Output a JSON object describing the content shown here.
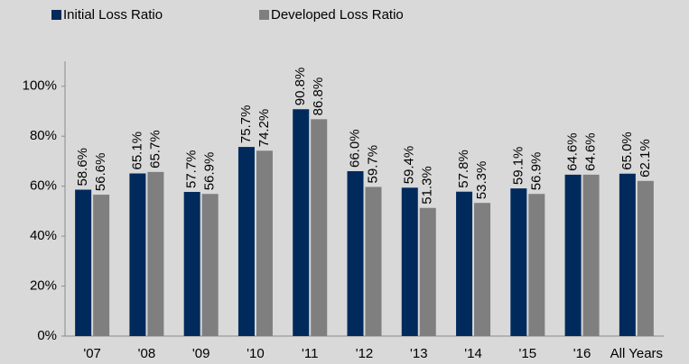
{
  "chart_data": {
    "type": "bar",
    "categories": [
      "'07",
      "'08",
      "'09",
      "'10",
      "'11",
      "'12",
      "'13",
      "'14",
      "'15",
      "'16",
      "All Years"
    ],
    "series": [
      {
        "name": "Initial Loss Ratio",
        "color": "#002a5c",
        "values": [
          58.6,
          65.1,
          57.7,
          75.7,
          90.8,
          66.0,
          59.4,
          57.8,
          59.1,
          64.6,
          65.0
        ],
        "value_labels": [
          "58.6%",
          "65.1%",
          "57.7%",
          "75.7%",
          "90.8%",
          "66.0%",
          "59.4%",
          "57.8%",
          "59.1%",
          "64.6%",
          "65.0%"
        ]
      },
      {
        "name": "Developed Loss Ratio",
        "color": "#7f7f7f",
        "values": [
          56.6,
          65.7,
          56.9,
          74.2,
          86.8,
          59.7,
          51.3,
          53.3,
          56.9,
          64.6,
          62.1
        ],
        "value_labels": [
          "56.6%",
          "65.7%",
          "56.9%",
          "74.2%",
          "86.8%",
          "59.7%",
          "51.3%",
          "53.3%",
          "56.9%",
          "64.6%",
          "62.1%"
        ]
      }
    ],
    "ylim": [
      0,
      110
    ],
    "yticks": [
      {
        "value": 0,
        "label": "0%"
      },
      {
        "value": 20,
        "label": "20%"
      },
      {
        "value": 40,
        "label": "40%"
      },
      {
        "value": 60,
        "label": "60%"
      },
      {
        "value": 80,
        "label": "80%"
      },
      {
        "value": 100,
        "label": "100%"
      }
    ],
    "grid": false,
    "legend": "top"
  }
}
